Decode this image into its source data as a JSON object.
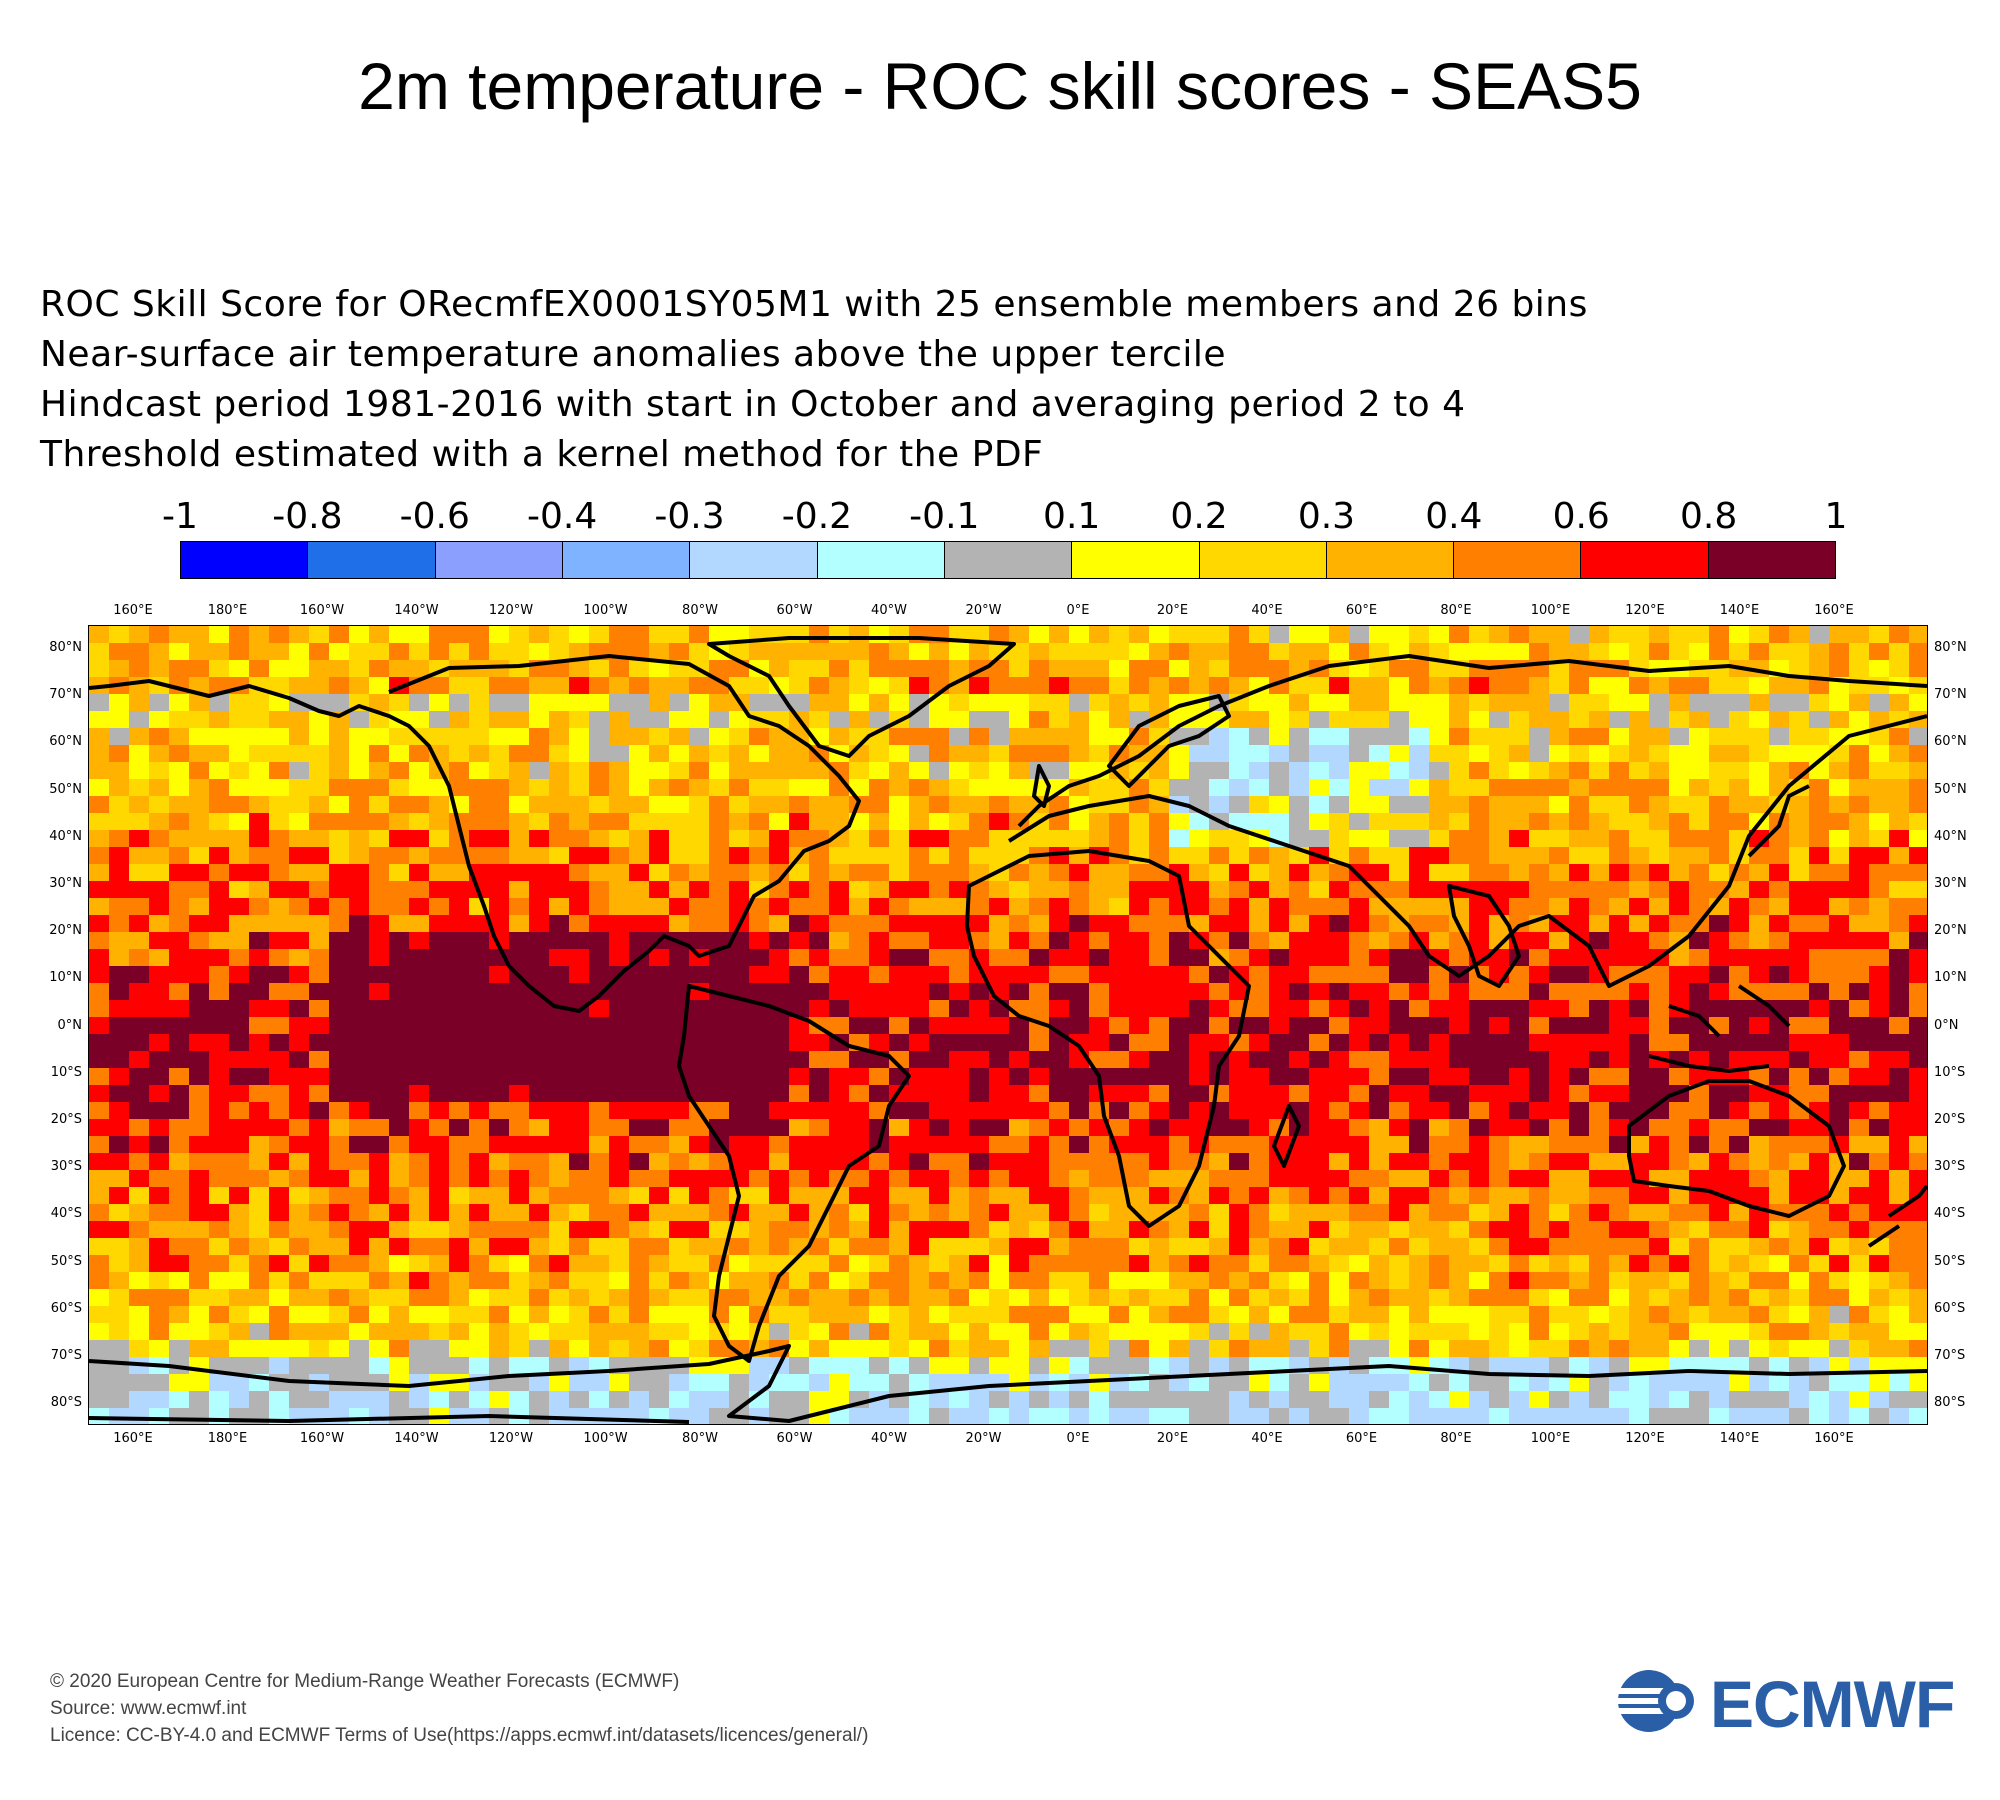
{
  "title": "2m temperature - ROC skill scores - SEAS5",
  "info_lines": [
    "ROC Skill Score for ORecmfEX0001SY05M1 with 25 ensemble members and 26 bins",
    "Near-surface air temperature anomalies above the upper tercile",
    "Hindcast period 1981-2016 with start in October and averaging period  2 to  4",
    "Threshold estimated with a kernel method for the PDF"
  ],
  "colorbar": {
    "labels": [
      "-1",
      "-0.8",
      "-0.6",
      "-0.4",
      "-0.3",
      "-0.2",
      "-0.1",
      "0.1",
      "0.2",
      "0.3",
      "0.4",
      "0.6",
      "0.8",
      "1"
    ],
    "colors": [
      "#0000ff",
      "#1f6fe8",
      "#8b9fff",
      "#7fb2ff",
      "#b2d8ff",
      "#b3ffff",
      "#b3b3b3",
      "#ffff00",
      "#ffd800",
      "#ffb300",
      "#ff7f00",
      "#ff0000",
      "#7a0028"
    ]
  },
  "lon_labels": [
    "160°E",
    "180°E",
    "160°W",
    "140°W",
    "120°W",
    "100°W",
    "80°W",
    "60°W",
    "40°W",
    "20°W",
    "0°E",
    "20°E",
    "40°E",
    "60°E",
    "80°E",
    "100°E",
    "120°E",
    "140°E",
    "160°E"
  ],
  "lat_labels": [
    "80°N",
    "70°N",
    "60°N",
    "50°N",
    "40°N",
    "30°N",
    "20°N",
    "10°N",
    "0°N",
    "10°S",
    "20°S",
    "30°S",
    "40°S",
    "50°S",
    "60°S",
    "70°S",
    "80°S"
  ],
  "footer": [
    "© 2020 European Centre for Medium-Range Weather Forecasts (ECMWF)",
    "Source: www.ecmwf.int",
    "Licence: CC-BY-4.0 and ECMWF Terms of Use(https://apps.ecmwf.int/datasets/licences/general/)"
  ],
  "logo_text": "ECMWF",
  "logo_color": "#2a5fa8"
}
